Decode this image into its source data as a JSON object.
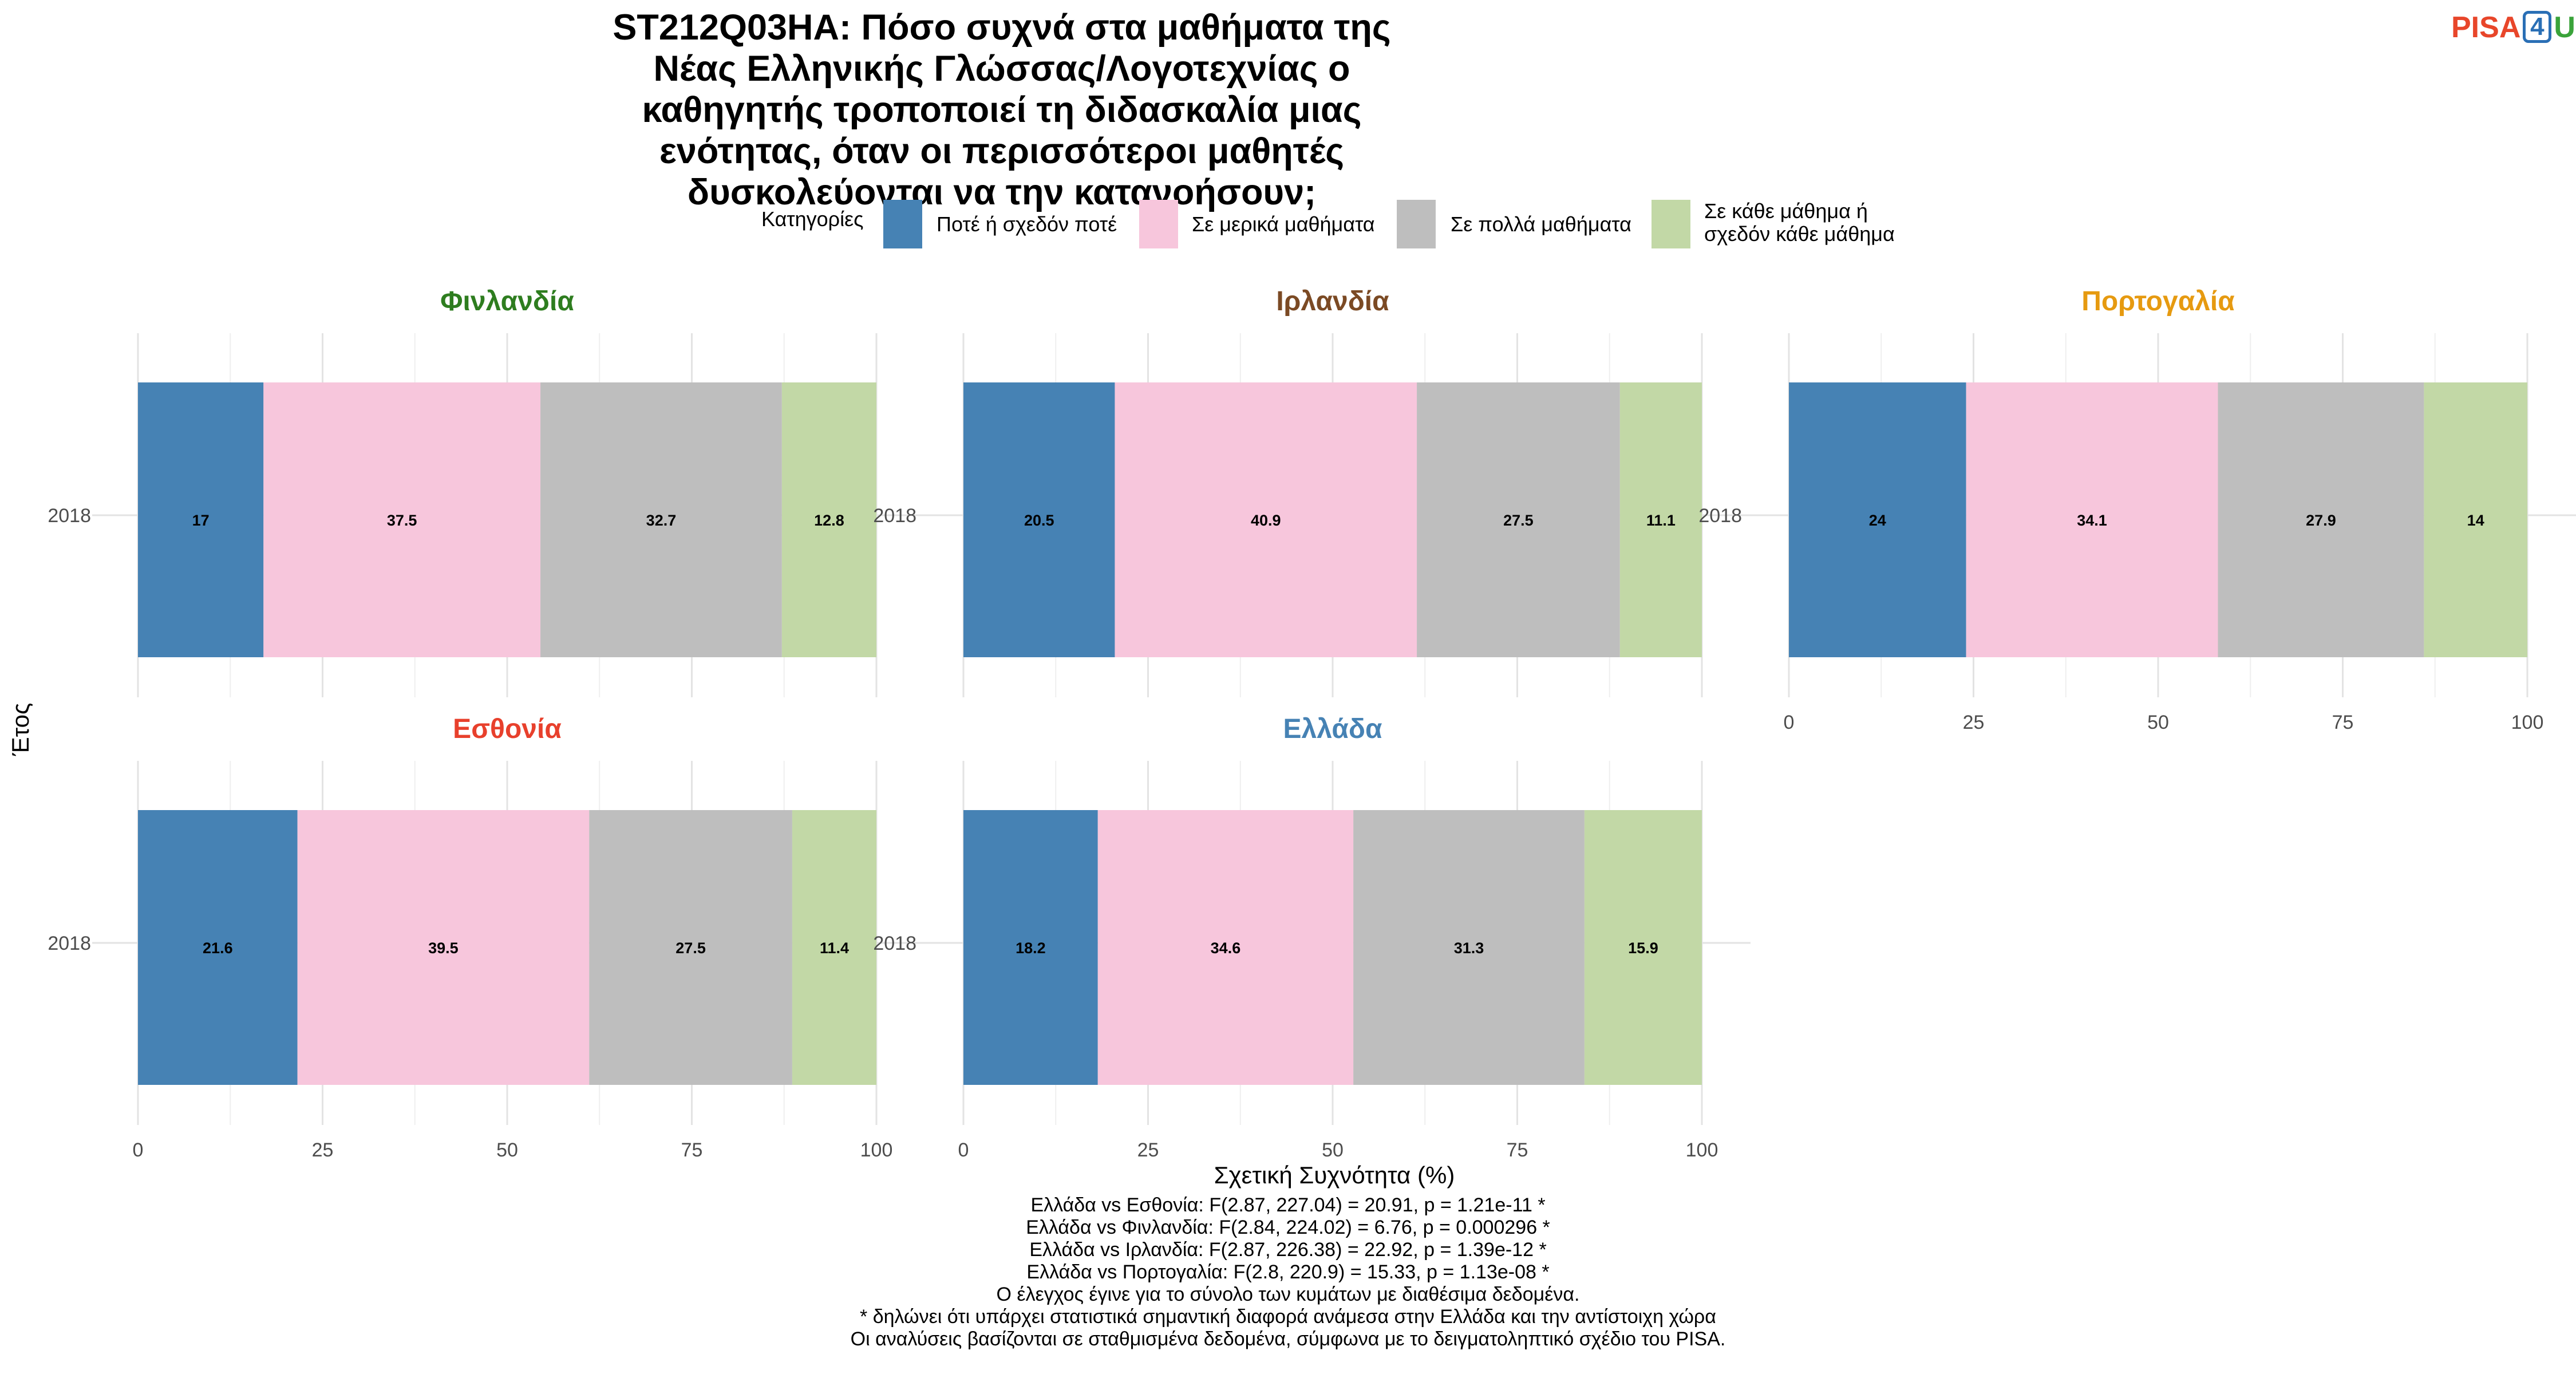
{
  "title": "ST212Q03HA: Πόσο συχνά στα μαθήματα της Νέας Ελληνικής Γλώσσας/Λογοτεχνίας ο καθηγητής τροποποιεί τη διδασκαλία μιας ενότητας, όταν οι περισσότεροι μαθητές δυσκολεύονται να την κατανοήσουν;",
  "logo": {
    "p": "PISA",
    "four": "4",
    "u": "U"
  },
  "footer_lines": [
    "Ελλάδα vs Εσθονία: F(2.87, 227.04) = 20.91, p = 1.21e-11 *",
    "Ελλάδα vs Φινλανδία: F(2.84, 224.02) = 6.76, p = 0.000296 *",
    "Ελλάδα vs Ιρλανδία: F(2.87, 226.38) = 22.92, p = 1.39e-12 *",
    "Ελλάδα vs Πορτογαλία: F(2.8, 220.9) = 15.33, p = 1.13e-08 *",
    "Ο έλεγχος έγινε για το σύνολο των κυμάτων με διαθέσιμα δεδομένα.",
    "* δηλώνει ότι υπάρχει στατιστικά σημαντική διαφορά ανάμεσα στην Ελλάδα και την αντίστοιχη χώρα",
    "Οι αναλύσεις βασίζονται σε σταθμισμένα δεδομένα, σύμφωνα με το δειγματοληπτικό σχέδιο του PISA."
  ],
  "chart_data": {
    "type": "bar",
    "orientation": "horizontal",
    "stacked": true,
    "title": "ST212Q03HA: Πόσο συχνά στα μαθήματα της Νέας Ελληνικής Γλώσσας/Λογοτεχνίας ο καθηγητής τροποποιεί τη διδασκαλία μιας ενότητας, όταν οι περισσότεροι μαθητές δυσκολεύονται να την κατανοήσουν;",
    "xlabel": "Σχετική Συχνότητα (%)",
    "ylabel": "Έτος",
    "xlim": [
      0,
      100
    ],
    "xticks": [
      0,
      25,
      50,
      75,
      100
    ],
    "grid": true,
    "legend": {
      "title": "Κατηγορίες",
      "position": "top",
      "entries": [
        {
          "label": "Ποτέ ή σχεδόν ποτέ",
          "color": "#4682b4"
        },
        {
          "label": "Σε μερικά μαθήματα",
          "color": "#f7c6dc"
        },
        {
          "label": "Σε πολλά μαθήματα",
          "color": "#bebebe"
        },
        {
          "label": "Σε κάθε μάθημα ή σχεδόν κάθε μάθημα",
          "color": "#c2d8a6"
        }
      ]
    },
    "panels": [
      {
        "name": "Φινλανδία",
        "title_color": "#2e7d1f",
        "year": "2018",
        "values": [
          17,
          37.5,
          32.7,
          12.8
        ],
        "labels": [
          "17",
          "37.5",
          "32.7",
          "12.8"
        ]
      },
      {
        "name": "Ιρλανδία",
        "title_color": "#7b4a24",
        "year": "2018",
        "values": [
          20.5,
          40.9,
          27.5,
          11.1
        ],
        "labels": [
          "20.5",
          "40.9",
          "27.5",
          "11.1"
        ]
      },
      {
        "name": "Πορτογαλία",
        "title_color": "#e69a10",
        "year": "2018",
        "values": [
          24,
          34.1,
          27.9,
          14
        ],
        "labels": [
          "24",
          "34.1",
          "27.9",
          "14"
        ]
      },
      {
        "name": "Εσθονία",
        "title_color": "#e8402c",
        "year": "2018",
        "values": [
          21.6,
          39.5,
          27.5,
          11.4
        ],
        "labels": [
          "21.6",
          "39.5",
          "27.5",
          "11.4"
        ]
      },
      {
        "name": "Ελλάδα",
        "title_color": "#4682b4",
        "year": "2018",
        "values": [
          18.2,
          34.6,
          31.3,
          15.9
        ],
        "labels": [
          "18.2",
          "34.6",
          "31.3",
          "15.9"
        ]
      }
    ]
  }
}
